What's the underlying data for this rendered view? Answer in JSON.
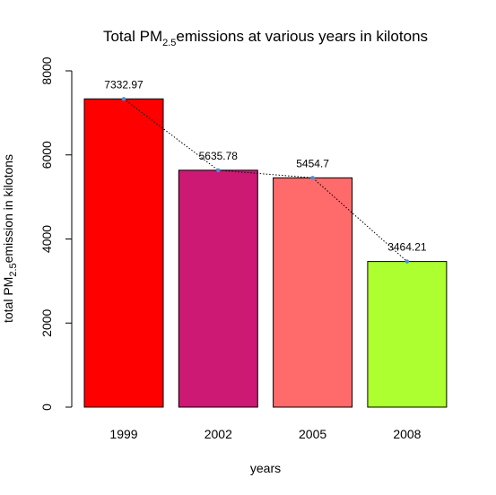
{
  "chart_data": {
    "type": "bar",
    "title": {
      "prefix": "Total PM",
      "subscript": "2.5",
      "suffix": "emissions at various years in kilotons"
    },
    "xlabel": "years",
    "ylabel": {
      "prefix": "total PM",
      "subscript": "2.5",
      "suffix": "emission in kilotons"
    },
    "categories": [
      "1999",
      "2002",
      "2005",
      "2008"
    ],
    "values": [
      7332.97,
      5635.78,
      5454.7,
      3464.21
    ],
    "data_labels": [
      "7332.97",
      "5635.78",
      "5454.7",
      "3464.21"
    ],
    "bar_colors": [
      "#ff0000",
      "#cd1874",
      "#ff6a6a",
      "#adff2f"
    ],
    "trend_line": {
      "style": "dotted",
      "color": "#000000",
      "marker_color": "#4a90d9"
    },
    "yticks": [
      0,
      2000,
      4000,
      6000,
      8000
    ],
    "ylim": [
      0,
      8000
    ],
    "grid": false,
    "legend": "none"
  }
}
